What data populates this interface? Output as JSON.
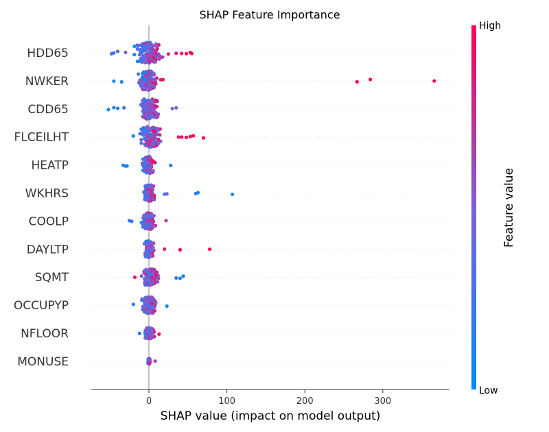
{
  "chart_data": {
    "type": "scatter",
    "title": "SHAP Feature Importance",
    "xlabel": "SHAP value (impact on model output)",
    "xlim": [
      -75,
      385
    ],
    "x_ticks": [
      0,
      100,
      200,
      300
    ],
    "x_tick_labels": [
      "0",
      "100",
      "200",
      "300"
    ],
    "features": [
      "HDD65",
      "NWKER",
      "CDD65",
      "FLCEILHT",
      "HEATP",
      "WKHRS",
      "COOLP",
      "DAYLTP",
      "SQMT",
      "OCCUPYP",
      "NFLOOR",
      "MONUSE"
    ],
    "colorbar": {
      "label": "Feature value",
      "high": "High",
      "low": "Low",
      "low_color": "#008bfb",
      "high_color": "#ff0052"
    },
    "grid": "horizontal dotted row guides",
    "series": [
      {
        "feature": "HDD65",
        "core": [
          -35,
          30,
          15
        ],
        "points": [
          [
            -48,
            0.2
          ],
          [
            -45,
            0.3
          ],
          [
            -40,
            0.35
          ],
          [
            -30,
            0.45
          ],
          [
            25,
            0.85
          ],
          [
            35,
            0.9
          ],
          [
            42,
            0.9
          ],
          [
            48,
            0.95
          ],
          [
            53,
            1
          ],
          [
            55,
            1
          ]
        ]
      },
      {
        "feature": "NWKER",
        "core": [
          -32,
          15,
          14
        ],
        "points": [
          [
            -45,
            0.1
          ],
          [
            -35,
            0.15
          ],
          [
            15,
            0.85
          ],
          [
            18,
            0.9
          ],
          [
            267,
            1
          ],
          [
            284,
            1
          ],
          [
            366,
            1
          ]
        ]
      },
      {
        "feature": "CDD65",
        "core": [
          -25,
          30,
          15
        ],
        "points": [
          [
            -52,
            0.05
          ],
          [
            -45,
            0.1
          ],
          [
            -40,
            0.15
          ],
          [
            -32,
            0.2
          ],
          [
            30,
            0.5
          ],
          [
            35,
            0.4
          ]
        ]
      },
      {
        "feature": "FLCEILHT",
        "core": [
          -18,
          35,
          15
        ],
        "points": [
          [
            -20,
            0.2
          ],
          [
            38,
            0.9
          ],
          [
            42,
            0.95
          ],
          [
            48,
            1
          ],
          [
            53,
            1
          ],
          [
            57,
            1
          ],
          [
            70,
            1
          ]
        ]
      },
      {
        "feature": "HEATP",
        "core": [
          -20,
          12,
          12
        ],
        "points": [
          [
            -33,
            0.1
          ],
          [
            -30,
            0.2
          ],
          [
            -28,
            0.15
          ],
          [
            28,
            0.2
          ]
        ]
      },
      {
        "feature": "WKHRS",
        "core": [
          -12,
          20,
          12
        ],
        "points": [
          [
            20,
            0.3
          ],
          [
            23,
            0.4
          ],
          [
            60,
            0.15
          ],
          [
            63,
            0.15
          ],
          [
            107,
            0.15
          ]
        ]
      },
      {
        "feature": "COOLP",
        "core": [
          -22,
          15,
          12
        ],
        "points": [
          [
            -25,
            0.2
          ],
          [
            -22,
            0.25
          ],
          [
            22,
            0.7
          ]
        ]
      },
      {
        "feature": "DAYLTP",
        "core": [
          -12,
          15,
          12
        ],
        "points": [
          [
            20,
            0.9
          ],
          [
            40,
            0.95
          ],
          [
            78,
            1
          ]
        ]
      },
      {
        "feature": "SQMT",
        "core": [
          -15,
          30,
          12
        ],
        "points": [
          [
            -18,
            0.9
          ],
          [
            35,
            0.15
          ],
          [
            40,
            0.1
          ],
          [
            44,
            0.1
          ]
        ]
      },
      {
        "feature": "OCCUPYP",
        "core": [
          -20,
          22,
          12
        ],
        "points": [
          [
            -20,
            0.2
          ],
          [
            23,
            0.15
          ]
        ]
      },
      {
        "feature": "NFLOOR",
        "core": [
          -12,
          14,
          8
        ],
        "points": [
          [
            13,
            0.9
          ],
          [
            -12,
            0.2
          ]
        ]
      },
      {
        "feature": "MONUSE",
        "core": [
          -2,
          3,
          4
        ],
        "points": [
          [
            8,
            0.6
          ]
        ]
      }
    ]
  }
}
